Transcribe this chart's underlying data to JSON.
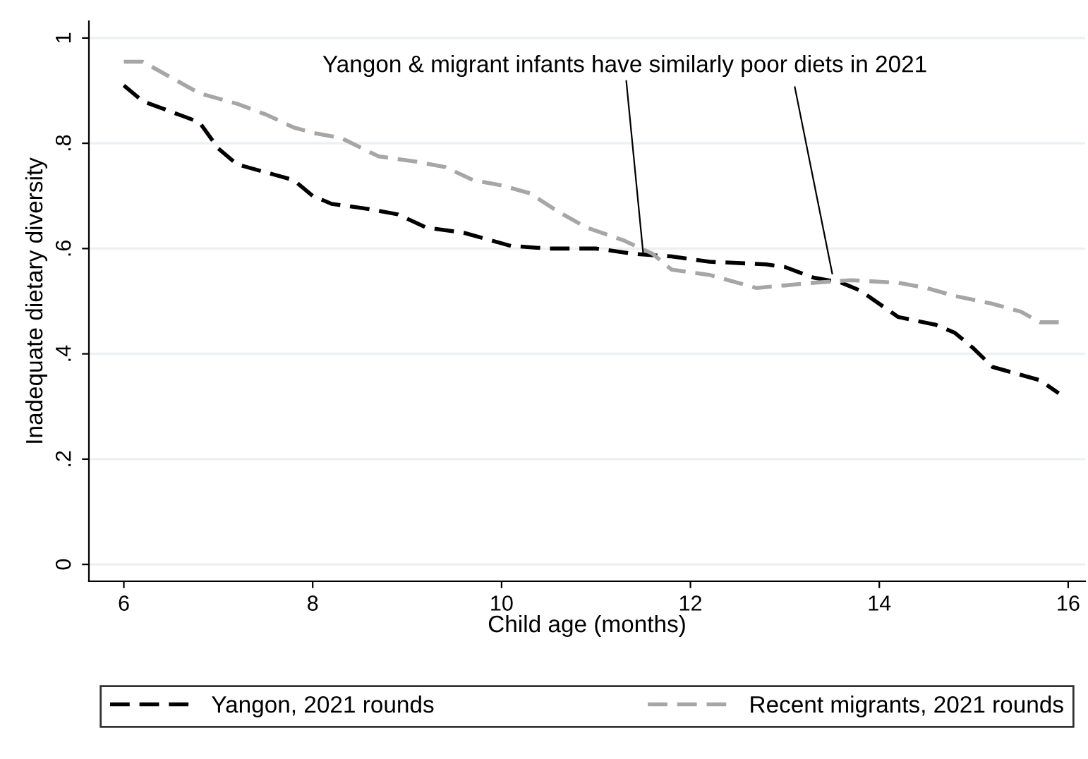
{
  "chart_data": {
    "type": "line",
    "xlabel": "Child age (months)",
    "ylabel": "Inadequate dietary diversity",
    "xlim": [
      5.63,
      16.18
    ],
    "xticks": [
      6,
      8,
      10,
      12,
      14,
      16
    ],
    "ylim": [
      -0.032,
      1.032
    ],
    "yticks": [
      {
        "value": 0,
        "label": "0"
      },
      {
        "value": 0.2,
        "label": ".2"
      },
      {
        "value": 0.4,
        "label": ".4"
      },
      {
        "value": 0.6,
        "label": ".6"
      },
      {
        "value": 0.8,
        "label": ".8"
      },
      {
        "value": 1,
        "label": "1"
      }
    ],
    "grid": "y",
    "legend": "bottom",
    "line_style": "dashed",
    "marker": "none",
    "annotations": [
      {
        "text": "Yangon & migrant infants have similarly poor diets in 2021",
        "x": 11.5,
        "y": 0.59
      }
    ],
    "series": [
      {
        "name": "Yangon, 2021 rounds",
        "color": "#000000",
        "x": [
          6,
          6.2,
          6.5,
          6.8,
          7.0,
          7.2,
          7.6,
          7.8,
          8.0,
          8.2,
          8.6,
          8.9,
          9.2,
          9.6,
          10.1,
          10.5,
          11.0,
          11.4,
          11.8,
          12.2,
          12.8,
          13.0,
          13.3,
          13.6,
          13.8,
          14.2,
          14.6,
          14.8,
          15.0,
          15.2,
          15.4,
          15.7,
          15.9
        ],
        "values": [
          0.91,
          0.88,
          0.86,
          0.84,
          0.79,
          0.76,
          0.74,
          0.73,
          0.7,
          0.685,
          0.675,
          0.665,
          0.64,
          0.63,
          0.605,
          0.6,
          0.6,
          0.59,
          0.585,
          0.575,
          0.57,
          0.565,
          0.545,
          0.535,
          0.52,
          0.47,
          0.455,
          0.44,
          0.41,
          0.375,
          0.365,
          0.35,
          0.325
        ]
      },
      {
        "name": "Recent migrants, 2021 rounds",
        "color": "#a6a6a6",
        "x": [
          6,
          6.2,
          6.5,
          6.8,
          7.2,
          7.5,
          7.8,
          8.0,
          8.3,
          8.7,
          9.1,
          9.4,
          9.7,
          10.0,
          10.3,
          10.6,
          10.9,
          11.3,
          11.6,
          11.8,
          12.2,
          12.7,
          13.0,
          13.3,
          13.7,
          14.2,
          14.5,
          14.8,
          15.2,
          15.5,
          15.7,
          15.9
        ],
        "values": [
          0.955,
          0.955,
          0.925,
          0.895,
          0.875,
          0.855,
          0.83,
          0.82,
          0.81,
          0.775,
          0.765,
          0.755,
          0.73,
          0.72,
          0.705,
          0.67,
          0.64,
          0.615,
          0.59,
          0.56,
          0.55,
          0.525,
          0.53,
          0.535,
          0.54,
          0.535,
          0.525,
          0.51,
          0.495,
          0.48,
          0.46,
          0.46
        ]
      }
    ]
  }
}
